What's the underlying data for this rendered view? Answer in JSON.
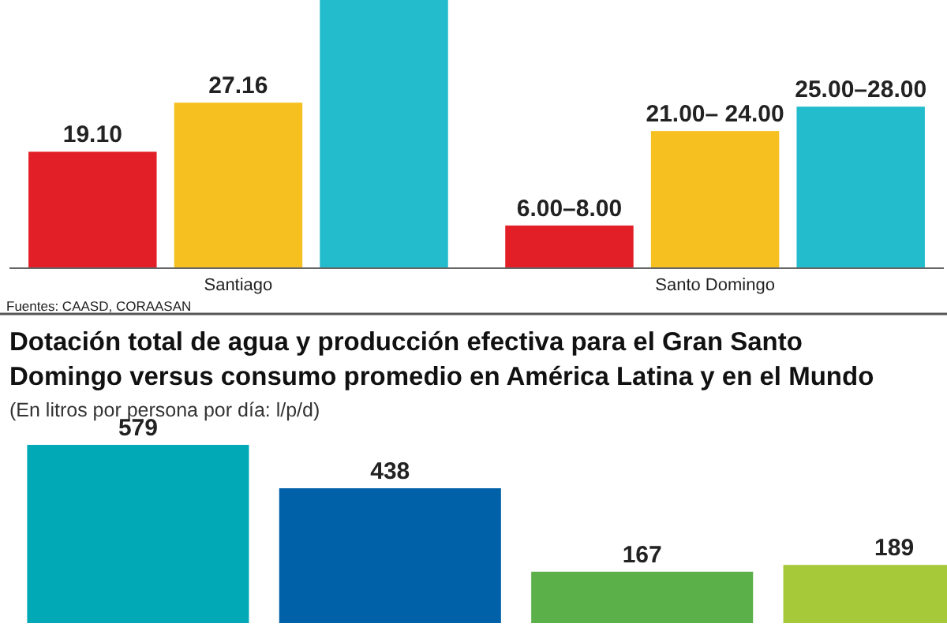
{
  "chart_data": [
    {
      "type": "bar",
      "categories": [
        "Santiago",
        "Santo Domingo"
      ],
      "ylim": [
        0,
        44
      ],
      "annotations": [
        "Fuentes: CAASD, CORAASAN"
      ],
      "series": [
        {
          "color": "#e21e26",
          "values": [
            19.1,
            7
          ],
          "value_labels": [
            "19.10",
            "6.00–8.00"
          ]
        },
        {
          "color": "#f6c120",
          "values": [
            27.16,
            22.5
          ],
          "value_labels": [
            "27.16",
            "21.00– 24.00"
          ]
        },
        {
          "color": "#22bccd",
          "values": [
            44,
            26.5
          ],
          "value_labels": [
            null,
            "25.00–28.00"
          ]
        }
      ]
    },
    {
      "type": "bar",
      "title": "Dotación total de agua y producción efectiva para el Gran Santo Domingo versus consumo promedio en América Latina y en el Mundo",
      "subtitle": "(En litros por persona por día: l/p/d)",
      "categories": [
        null,
        null,
        null,
        null
      ],
      "values": [
        579,
        438,
        167,
        189
      ],
      "colors": [
        "#00a9b5",
        "#0060a8",
        "#5bb04a",
        "#a6c93a"
      ],
      "data_labels": true
    }
  ]
}
